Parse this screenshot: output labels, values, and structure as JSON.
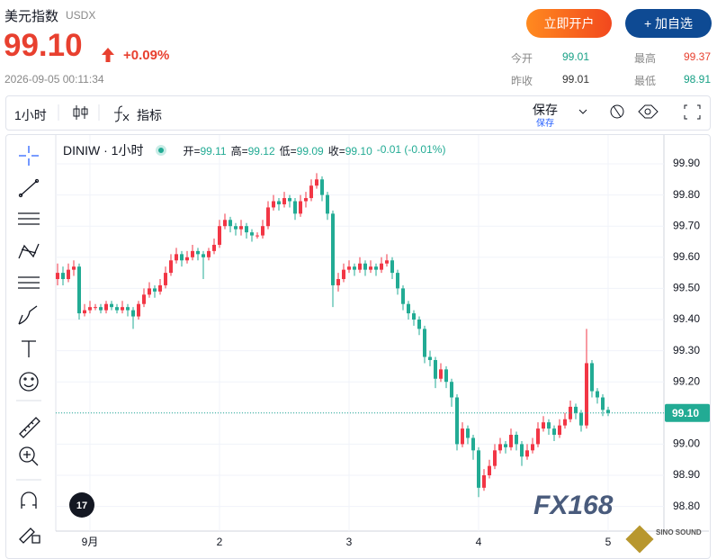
{
  "header": {
    "title": "美元指数",
    "code": "USDX",
    "price": "99.10",
    "change": "+0.09%",
    "time": "2026-09-05 00:11:34",
    "buttons": [
      "立即开户",
      "+ 加自选"
    ],
    "stats": [
      {
        "label": "今开",
        "value": "99.01"
      },
      {
        "label": "最高",
        "value": "99.37"
      },
      {
        "label": "昨收",
        "value": "99.01"
      },
      {
        "label": "最低",
        "value": "98.91"
      }
    ]
  },
  "toolbar": {
    "interval": "1小时",
    "indicators": "指标",
    "save": "保存",
    "save_sub": "保存"
  },
  "chart_data": {
    "type": "candlestick",
    "symbol": "DINIW · 1小时",
    "legend": [
      {
        "label": "开=",
        "value": "99.11"
      },
      {
        "label": "高=",
        "value": "99.12"
      },
      {
        "label": "低=",
        "value": "99.09"
      },
      {
        "label": "收=",
        "value": "99.10"
      }
    ],
    "change_text": "-0.01 (-0.01%)",
    "up_color": "#f23645",
    "down_color": "#22ab94",
    "grid": true,
    "ylim": [
      98.7,
      100.0
    ],
    "yticks": [
      {
        "value": 98.8,
        "label": "98.80"
      },
      {
        "value": 98.9,
        "label": "98.90"
      },
      {
        "value": 99.0,
        "label": "99.00"
      },
      {
        "value": 99.1,
        "label": "99.10"
      },
      {
        "value": 99.2,
        "label": "99.20"
      },
      {
        "value": 99.3,
        "label": "99.30"
      },
      {
        "value": 99.4,
        "label": "99.40"
      },
      {
        "value": 99.5,
        "label": "99.50"
      },
      {
        "value": 99.6,
        "label": "99.60"
      },
      {
        "value": 99.7,
        "label": "99.70"
      },
      {
        "value": 99.8,
        "label": "99.80"
      },
      {
        "value": 99.9,
        "label": "99.90"
      }
    ],
    "xticks": [
      {
        "value": 6,
        "label": "9月"
      },
      {
        "value": 30,
        "label": "2"
      },
      {
        "value": 54,
        "label": "3"
      },
      {
        "value": 78,
        "label": "4"
      },
      {
        "value": 102,
        "label": "5"
      }
    ],
    "open": [
      99.53,
      99.55,
      99.53,
      99.56,
      99.57,
      99.42,
      99.43,
      99.44,
      99.44,
      99.43,
      99.45,
      99.44,
      99.43,
      99.44,
      99.43,
      99.41,
      99.45,
      99.48,
      99.5,
      99.49,
      99.51,
      99.55,
      99.59,
      99.61,
      99.59,
      99.6,
      99.62,
      99.61,
      99.6,
      99.62,
      99.64,
      99.7,
      99.72,
      99.7,
      99.69,
      99.7,
      99.68,
      99.67,
      99.67,
      99.7,
      99.76,
      99.78,
      99.77,
      99.79,
      99.78,
      99.74,
      99.78,
      99.79,
      99.83,
      99.85,
      99.8,
      99.74,
      99.51,
      99.53,
      99.56,
      99.57,
      99.56,
      99.58,
      99.56,
      99.57,
      99.56,
      99.58,
      99.59,
      99.55,
      99.5,
      99.45,
      99.42,
      99.4,
      99.37,
      99.28,
      99.27,
      99.21,
      99.24,
      99.2,
      99.15,
      99.0,
      99.05,
      99.02,
      98.98,
      98.86,
      98.9,
      98.93,
      98.98,
      99.0,
      98.99,
      99.03,
      99.0,
      98.96,
      98.98,
      99.0,
      99.05,
      99.07,
      99.05,
      99.03,
      99.06,
      99.08,
      99.12,
      99.1,
      99.06,
      99.26,
      99.17,
      99.15,
      99.11
    ],
    "high": [
      99.58,
      99.57,
      99.58,
      99.59,
      99.58,
      99.45,
      99.46,
      99.45,
      99.45,
      99.46,
      99.46,
      99.45,
      99.46,
      99.45,
      99.44,
      99.46,
      99.5,
      99.52,
      99.51,
      99.53,
      99.57,
      99.61,
      99.63,
      99.62,
      99.62,
      99.64,
      99.63,
      99.62,
      99.63,
      99.66,
      99.72,
      99.74,
      99.73,
      99.71,
      99.72,
      99.71,
      99.69,
      99.68,
      99.72,
      99.78,
      99.8,
      99.79,
      99.81,
      99.8,
      99.79,
      99.8,
      99.81,
      99.85,
      99.87,
      99.86,
      99.81,
      99.75,
      99.55,
      99.58,
      99.59,
      99.58,
      99.6,
      99.59,
      99.59,
      99.58,
      99.6,
      99.61,
      99.6,
      99.56,
      99.51,
      99.46,
      99.43,
      99.41,
      99.38,
      99.3,
      99.28,
      99.26,
      99.25,
      99.21,
      99.16,
      99.07,
      99.06,
      99.03,
      98.99,
      98.92,
      98.95,
      99.0,
      99.02,
      99.01,
      99.05,
      99.04,
      99.01,
      99.0,
      99.02,
      99.07,
      99.09,
      99.08,
      99.06,
      99.08,
      99.1,
      99.14,
      99.13,
      99.11,
      99.37,
      99.27,
      99.18,
      99.16,
      99.12
    ],
    "low": [
      99.51,
      99.51,
      99.52,
      99.54,
      99.4,
      99.41,
      99.42,
      99.43,
      99.42,
      99.42,
      99.43,
      99.42,
      99.42,
      99.41,
      99.37,
      99.4,
      99.44,
      99.47,
      99.47,
      99.48,
      99.5,
      99.54,
      99.58,
      99.57,
      99.58,
      99.59,
      99.59,
      99.53,
      99.59,
      99.61,
      99.63,
      99.69,
      99.68,
      99.67,
      99.67,
      99.66,
      99.65,
      99.66,
      99.66,
      99.69,
      99.75,
      99.75,
      99.76,
      99.76,
      99.72,
      99.73,
      99.76,
      99.78,
      99.82,
      99.78,
      99.72,
      99.44,
      99.49,
      99.52,
      99.55,
      99.54,
      99.55,
      99.54,
      99.55,
      99.54,
      99.55,
      99.57,
      99.53,
      99.48,
      99.43,
      99.4,
      99.38,
      99.35,
      99.26,
      99.25,
      99.18,
      99.2,
      99.18,
      99.12,
      98.98,
      98.99,
      99.0,
      98.95,
      98.83,
      98.85,
      98.89,
      98.92,
      98.97,
      98.97,
      98.98,
      98.98,
      98.93,
      98.95,
      98.97,
      98.99,
      99.04,
      99.03,
      99.01,
      99.02,
      99.05,
      99.07,
      99.08,
      99.04,
      99.05,
      99.15,
      99.13,
      99.09,
      99.09
    ],
    "close": [
      99.55,
      99.53,
      99.56,
      99.57,
      99.42,
      99.43,
      99.44,
      99.44,
      99.43,
      99.45,
      99.44,
      99.43,
      99.44,
      99.43,
      99.41,
      99.45,
      99.48,
      99.5,
      99.49,
      99.51,
      99.55,
      99.59,
      99.61,
      99.59,
      99.6,
      99.62,
      99.61,
      99.6,
      99.62,
      99.64,
      99.7,
      99.72,
      99.7,
      99.69,
      99.7,
      99.68,
      99.67,
      99.67,
      99.7,
      99.76,
      99.78,
      99.77,
      99.79,
      99.78,
      99.74,
      99.78,
      99.79,
      99.83,
      99.85,
      99.8,
      99.74,
      99.51,
      99.53,
      99.56,
      99.57,
      99.56,
      99.58,
      99.56,
      99.57,
      99.56,
      99.58,
      99.59,
      99.55,
      99.5,
      99.45,
      99.42,
      99.4,
      99.37,
      99.28,
      99.27,
      99.21,
      99.24,
      99.2,
      99.15,
      99.0,
      99.05,
      99.02,
      98.98,
      98.86,
      98.9,
      98.93,
      98.98,
      99.0,
      98.99,
      99.03,
      99.0,
      98.96,
      98.98,
      99.0,
      99.05,
      99.07,
      99.05,
      99.03,
      99.06,
      99.08,
      99.12,
      99.1,
      99.06,
      99.26,
      99.17,
      99.15,
      99.11,
      99.1
    ],
    "last_price": {
      "value": 99.1,
      "label": "99.10"
    }
  },
  "watermark": {
    "brand": "FX168",
    "sub": "SINO SOUND"
  }
}
